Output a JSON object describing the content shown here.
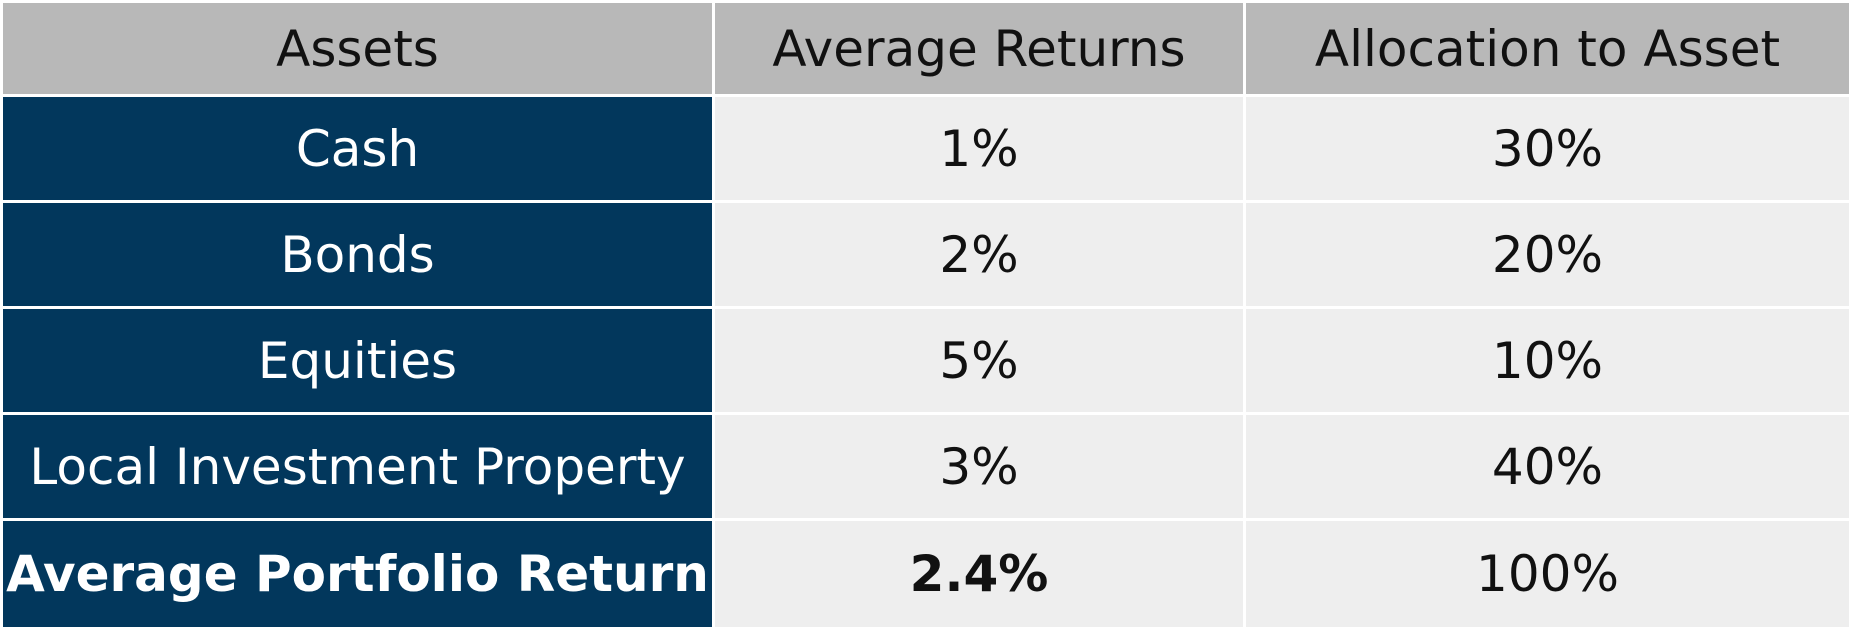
{
  "table": {
    "headers": [
      "Assets",
      "Average Returns",
      "Allocation to Asset"
    ],
    "rows": [
      {
        "asset": "Cash",
        "return": "1%",
        "allocation": "30%"
      },
      {
        "asset": "Bonds",
        "return": "2%",
        "allocation": "20%"
      },
      {
        "asset": "Equities",
        "return": "5%",
        "allocation": "10%"
      },
      {
        "asset": "Local Investment Property",
        "return": "3%",
        "allocation": "40%"
      }
    ],
    "total": {
      "label": "Average Portfolio Return",
      "return": "2.4%",
      "allocation": "100%"
    }
  },
  "colors": {
    "header_bg": "#b8b8b8",
    "asset_bg": "#02375c",
    "value_bg": "#eeeeee"
  }
}
